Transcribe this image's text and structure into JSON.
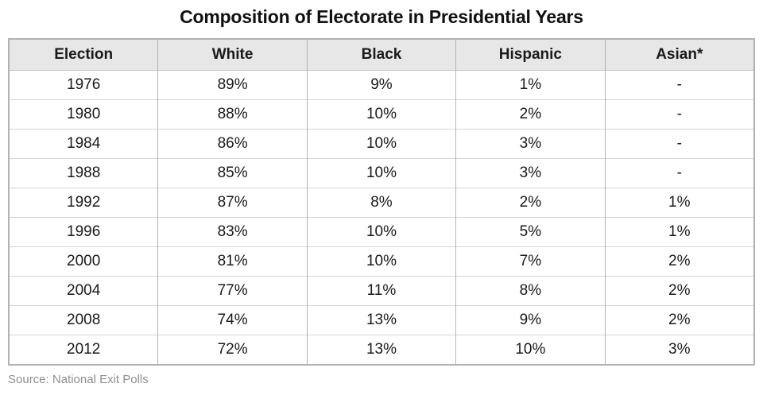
{
  "title": "Composition of Electorate in Presidential Years",
  "source": "Source: National Exit Polls",
  "colors": {
    "header_bg": "#e7e7e8",
    "border_outer": "#b2b2b2",
    "border_vertical": "#b2b2b2",
    "border_horizontal": "#d4d4d4",
    "title_text": "#111111",
    "body_text": "#1a1a1a",
    "source_text": "#8f8f8f"
  },
  "chart_data": {
    "type": "table",
    "title": "Composition of Electorate in Presidential Years",
    "columns": [
      "Election",
      "White",
      "Black",
      "Hispanic",
      "Asian*"
    ],
    "rows": [
      [
        "1976",
        "89%",
        "9%",
        "1%",
        "-"
      ],
      [
        "1980",
        "88%",
        "10%",
        "2%",
        "-"
      ],
      [
        "1984",
        "86%",
        "10%",
        "3%",
        "-"
      ],
      [
        "1988",
        "85%",
        "10%",
        "3%",
        "-"
      ],
      [
        "1992",
        "87%",
        "8%",
        "2%",
        "1%"
      ],
      [
        "1996",
        "83%",
        "10%",
        "5%",
        "1%"
      ],
      [
        "2000",
        "81%",
        "10%",
        "7%",
        "2%"
      ],
      [
        "2004",
        "77%",
        "11%",
        "8%",
        "2%"
      ],
      [
        "2008",
        "74%",
        "13%",
        "9%",
        "2%"
      ],
      [
        "2012",
        "72%",
        "13%",
        "10%",
        "3%"
      ]
    ],
    "source": "Source: National Exit Polls",
    "layout": {
      "header_background": "#e7e7e8",
      "grid": "on",
      "value_alignment": "center"
    }
  }
}
